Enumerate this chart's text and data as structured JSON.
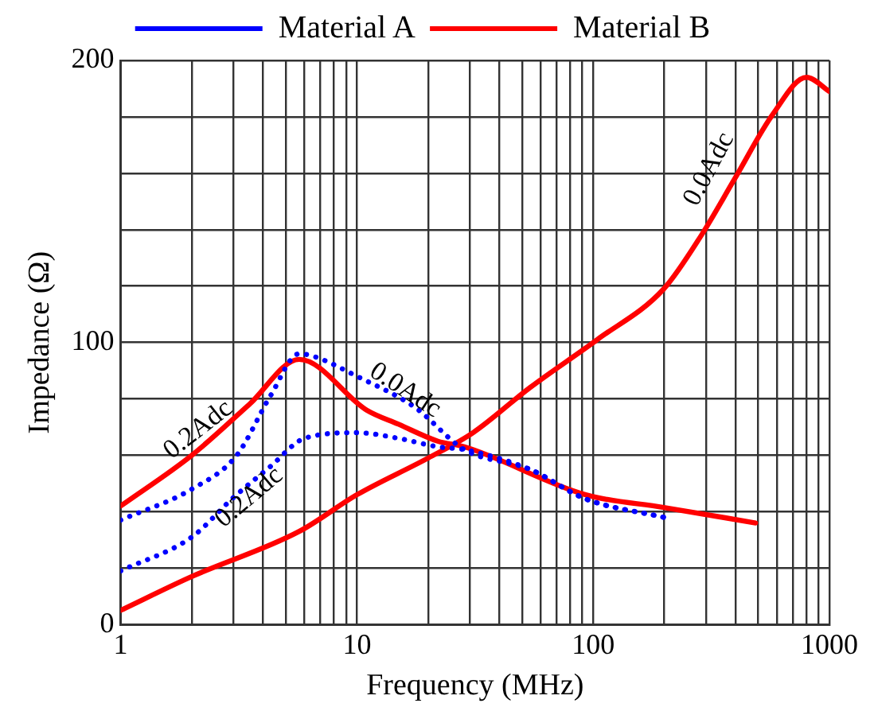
{
  "chart_data": {
    "type": "line",
    "xlabel": "Frequency (MHz)",
    "ylabel": "Impedance (Ω)",
    "log": "x",
    "grid": true,
    "legend": "top",
    "marker": "none",
    "xlim": [
      1,
      1000
    ],
    "xticks": [
      1,
      {
        "value": 2,
        "label": null
      },
      {
        "value": 3,
        "label": null
      },
      {
        "value": 4,
        "label": null
      },
      {
        "value": 5,
        "label": null
      },
      {
        "value": 6,
        "label": null
      },
      {
        "value": 7,
        "label": null
      },
      {
        "value": 8,
        "label": null
      },
      {
        "value": 9,
        "label": null
      },
      10,
      {
        "value": 20,
        "label": null
      },
      {
        "value": 30,
        "label": null
      },
      {
        "value": 40,
        "label": null
      },
      {
        "value": 50,
        "label": null
      },
      {
        "value": 60,
        "label": null
      },
      {
        "value": 70,
        "label": null
      },
      {
        "value": 80,
        "label": null
      },
      {
        "value": 90,
        "label": null
      },
      100,
      {
        "value": 200,
        "label": null
      },
      {
        "value": 300,
        "label": null
      },
      {
        "value": 400,
        "label": null
      },
      {
        "value": 500,
        "label": null
      },
      {
        "value": 600,
        "label": null
      },
      {
        "value": 700,
        "label": null
      },
      {
        "value": 800,
        "label": null
      },
      {
        "value": 900,
        "label": null
      },
      1000
    ],
    "ylim": [
      0,
      200
    ],
    "yticks": [
      0,
      {
        "value": 20,
        "label": null
      },
      {
        "value": 40,
        "label": null
      },
      {
        "value": 60,
        "label": null
      },
      {
        "value": 80,
        "label": null
      },
      100,
      {
        "value": 120,
        "label": null
      },
      {
        "value": 140,
        "label": null
      },
      {
        "value": 160,
        "label": null
      },
      {
        "value": 180,
        "label": null
      },
      200
    ],
    "series": [
      {
        "name": "Material A",
        "color": "#0000ff",
        "line_style": "dotted",
        "x": [
          1,
          2,
          3.1,
          4.3,
          5.7,
          6.6,
          10,
          17.6,
          28.5,
          54,
          93,
          199
        ],
        "values": [
          37,
          48,
          60,
          81,
          96,
          95,
          88,
          77,
          62,
          55,
          44.5,
          38
        ]
      },
      {
        "color": "#0000ff",
        "line_style": "dotted",
        "x": [
          1,
          2,
          3,
          4.3,
          6,
          10,
          15,
          22,
          28.5,
          54,
          93,
          199
        ],
        "values": [
          19,
          31,
          45,
          56,
          66,
          68,
          66,
          63,
          62,
          55,
          44.5,
          38
        ]
      },
      {
        "name": "Material B",
        "color": "#ff0000",
        "line_style": "solid",
        "x": [
          1,
          2,
          3.5,
          5.7,
          11,
          15,
          22,
          28.5,
          93,
          199,
          487
        ],
        "values": [
          42,
          60,
          78,
          94,
          76,
          71,
          65,
          63,
          46,
          41.5,
          36
        ]
      },
      {
        "color": "#ff0000",
        "line_style": "solid",
        "x": [
          1,
          2,
          5.7,
          10,
          20,
          31,
          54,
          104,
          199,
          287,
          397,
          577,
          800,
          1000
        ],
        "values": [
          5,
          17,
          33,
          46,
          59,
          68,
          84,
          101,
          119,
          138,
          158,
          181,
          194,
          189
        ]
      }
    ],
    "annotations": [
      {
        "text": "0.2Adc",
        "x": 2,
        "y": 60
      },
      {
        "text": "0.2Adc",
        "x": 3.5,
        "y": 45
      },
      {
        "text": "0.0Adc",
        "x": 16,
        "y": 83
      },
      {
        "text": "0.0Adc",
        "x": 397,
        "y": 158
      }
    ]
  }
}
